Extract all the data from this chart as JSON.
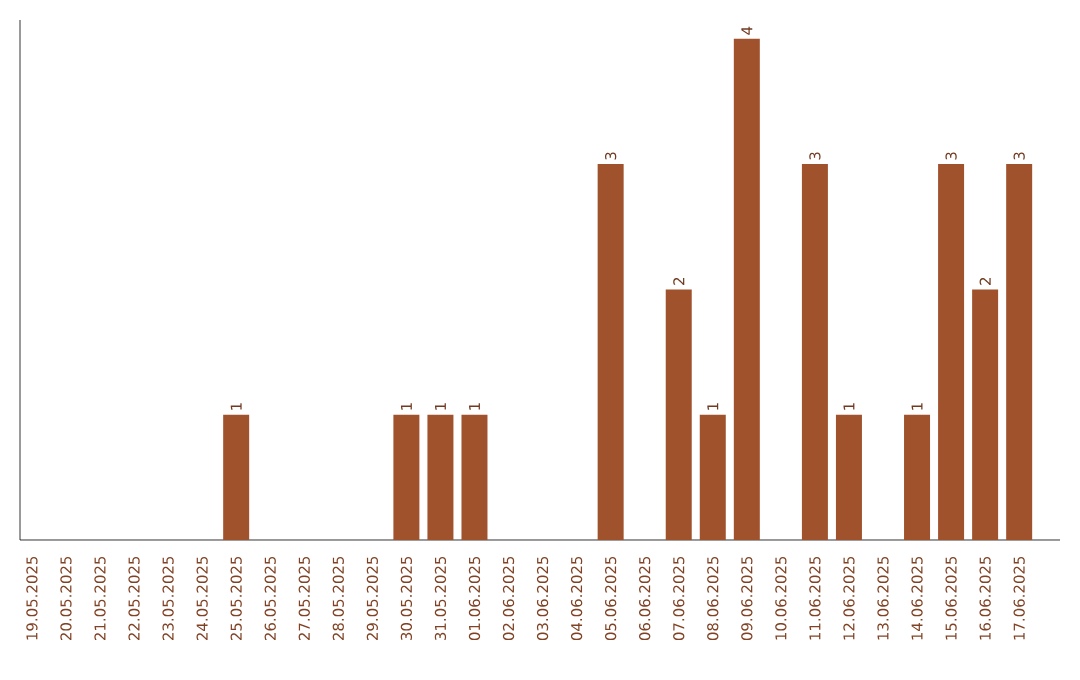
{
  "chart_data": {
    "type": "bar",
    "categories": [
      "19.05.2025",
      "20.05.2025",
      "21.05.2025",
      "22.05.2025",
      "23.05.2025",
      "24.05.2025",
      "25.05.2025",
      "26.05.2025",
      "27.05.2025",
      "28.05.2025",
      "29.05.2025",
      "30.05.2025",
      "31.05.2025",
      "01.06.2025",
      "02.06.2025",
      "03.06.2025",
      "04.06.2025",
      "05.06.2025",
      "06.06.2025",
      "07.06.2025",
      "08.06.2025",
      "09.06.2025",
      "10.06.2025",
      "11.06.2025",
      "12.06.2025",
      "13.06.2025",
      "14.06.2025",
      "15.06.2025",
      "16.06.2025",
      "17.06.2025"
    ],
    "values": [
      0,
      0,
      0,
      0,
      0,
      0,
      1,
      0,
      0,
      0,
      0,
      1,
      1,
      1,
      0,
      0,
      0,
      3,
      0,
      2,
      1,
      4,
      0,
      3,
      1,
      0,
      1,
      3,
      2,
      3
    ],
    "value_labels": [
      null,
      null,
      null,
      null,
      null,
      null,
      "1",
      null,
      null,
      null,
      null,
      "1",
      "1",
      "1",
      null,
      null,
      null,
      "3",
      null,
      "2",
      "1",
      "4",
      null,
      "3",
      "1",
      null,
      "1",
      "3",
      "2",
      "3"
    ],
    "color": "#a0522d",
    "ylim": [
      0,
      4.15
    ],
    "tick_labels": "x"
  }
}
